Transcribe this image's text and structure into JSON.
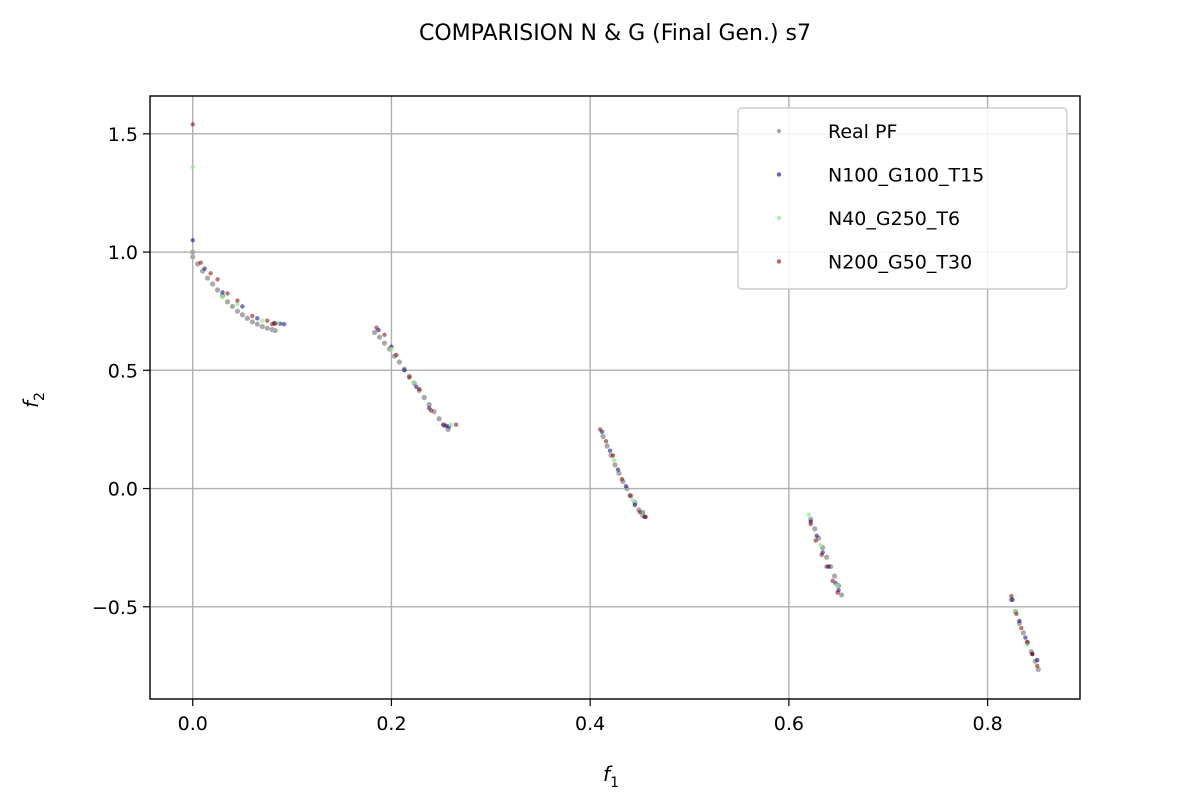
{
  "chart_data": {
    "type": "scatter",
    "title": "COMPARISION N & G (Final Gen.) s7",
    "xlabel": "f",
    "xlabel_sub": "1",
    "ylabel": "f",
    "ylabel_sub": "2",
    "xlim": [
      -0.043,
      0.893
    ],
    "ylim": [
      -0.89,
      1.66
    ],
    "xticks": [
      0.0,
      0.2,
      0.4,
      0.6,
      0.8
    ],
    "xtick_labels": [
      "0.0",
      "0.2",
      "0.4",
      "0.6",
      "0.8"
    ],
    "yticks": [
      -0.5,
      0.0,
      0.5,
      1.0,
      1.5
    ],
    "ytick_labels": [
      "−0.5",
      "0.0",
      "0.5",
      "1.0",
      "1.5"
    ],
    "grid": true,
    "legend_position": "top-right",
    "series": [
      {
        "name": "Real PF",
        "color": "#a9a9a9",
        "opacity": 1.0,
        "radius": 2.6,
        "points": [
          [
            0.0,
            1.0
          ],
          [
            0.0,
            0.98
          ],
          [
            0.005,
            0.95
          ],
          [
            0.01,
            0.92
          ],
          [
            0.015,
            0.89
          ],
          [
            0.02,
            0.865
          ],
          [
            0.025,
            0.84
          ],
          [
            0.03,
            0.815
          ],
          [
            0.035,
            0.79
          ],
          [
            0.04,
            0.77
          ],
          [
            0.045,
            0.75
          ],
          [
            0.05,
            0.735
          ],
          [
            0.055,
            0.72
          ],
          [
            0.06,
            0.705
          ],
          [
            0.065,
            0.695
          ],
          [
            0.07,
            0.685
          ],
          [
            0.075,
            0.678
          ],
          [
            0.08,
            0.672
          ],
          [
            0.083,
            0.668
          ],
          [
            0.183,
            0.66
          ],
          [
            0.188,
            0.64
          ],
          [
            0.193,
            0.615
          ],
          [
            0.198,
            0.59
          ],
          [
            0.203,
            0.56
          ],
          [
            0.208,
            0.535
          ],
          [
            0.213,
            0.505
          ],
          [
            0.218,
            0.475
          ],
          [
            0.223,
            0.445
          ],
          [
            0.228,
            0.415
          ],
          [
            0.233,
            0.385
          ],
          [
            0.238,
            0.355
          ],
          [
            0.243,
            0.325
          ],
          [
            0.248,
            0.295
          ],
          [
            0.253,
            0.268
          ],
          [
            0.257,
            0.25
          ],
          [
            0.413,
            0.22
          ],
          [
            0.417,
            0.18
          ],
          [
            0.421,
            0.14
          ],
          [
            0.425,
            0.1
          ],
          [
            0.429,
            0.065
          ],
          [
            0.433,
            0.03
          ],
          [
            0.437,
            0.0
          ],
          [
            0.441,
            -0.03
          ],
          [
            0.445,
            -0.06
          ],
          [
            0.449,
            -0.09
          ],
          [
            0.453,
            -0.115
          ],
          [
            0.622,
            -0.13
          ],
          [
            0.626,
            -0.17
          ],
          [
            0.63,
            -0.21
          ],
          [
            0.634,
            -0.25
          ],
          [
            0.638,
            -0.29
          ],
          [
            0.642,
            -0.33
          ],
          [
            0.646,
            -0.37
          ],
          [
            0.65,
            -0.41
          ],
          [
            0.653,
            -0.45
          ],
          [
            0.824,
            -0.47
          ],
          [
            0.828,
            -0.52
          ],
          [
            0.832,
            -0.57
          ],
          [
            0.836,
            -0.61
          ],
          [
            0.84,
            -0.65
          ],
          [
            0.844,
            -0.69
          ],
          [
            0.848,
            -0.73
          ],
          [
            0.851,
            -0.765
          ]
        ]
      },
      {
        "name": "N100_G100_T15",
        "color": "#00008b",
        "opacity": 0.55,
        "radius": 2.2,
        "points": [
          [
            0.0,
            1.05
          ],
          [
            0.012,
            0.93
          ],
          [
            0.03,
            0.83
          ],
          [
            0.05,
            0.77
          ],
          [
            0.065,
            0.72
          ],
          [
            0.082,
            0.7
          ],
          [
            0.088,
            0.697
          ],
          [
            0.092,
            0.695
          ],
          [
            0.187,
            0.67
          ],
          [
            0.2,
            0.6
          ],
          [
            0.213,
            0.5
          ],
          [
            0.225,
            0.43
          ],
          [
            0.238,
            0.34
          ],
          [
            0.255,
            0.265
          ],
          [
            0.258,
            0.262
          ],
          [
            0.412,
            0.24
          ],
          [
            0.42,
            0.16
          ],
          [
            0.428,
            0.08
          ],
          [
            0.436,
            0.01
          ],
          [
            0.445,
            -0.07
          ],
          [
            0.453,
            -0.1
          ],
          [
            0.455,
            -0.12
          ],
          [
            0.622,
            -0.14
          ],
          [
            0.628,
            -0.2
          ],
          [
            0.634,
            -0.27
          ],
          [
            0.64,
            -0.33
          ],
          [
            0.647,
            -0.4
          ],
          [
            0.65,
            -0.43
          ],
          [
            0.825,
            -0.47
          ],
          [
            0.832,
            -0.56
          ],
          [
            0.838,
            -0.63
          ],
          [
            0.845,
            -0.7
          ],
          [
            0.85,
            -0.725
          ]
        ]
      },
      {
        "name": "N40_G250_T6",
        "color": "#90ee90",
        "opacity": 0.75,
        "radius": 2.2,
        "points": [
          [
            0.0,
            1.36
          ],
          [
            0.03,
            0.81
          ],
          [
            0.045,
            0.78
          ],
          [
            0.07,
            0.71
          ],
          [
            0.085,
            0.7
          ],
          [
            0.2,
            0.59
          ],
          [
            0.222,
            0.45
          ],
          [
            0.26,
            0.27
          ],
          [
            0.424,
            0.12
          ],
          [
            0.443,
            -0.05
          ],
          [
            0.452,
            -0.1
          ],
          [
            0.62,
            -0.11
          ],
          [
            0.632,
            -0.24
          ],
          [
            0.648,
            -0.41
          ],
          [
            0.828,
            -0.52
          ],
          [
            0.84,
            -0.66
          ]
        ]
      },
      {
        "name": "N200_G50_T30",
        "color": "#8b0000",
        "opacity": 0.55,
        "radius": 2.2,
        "points": [
          [
            0.0,
            1.54
          ],
          [
            0.008,
            0.955
          ],
          [
            0.018,
            0.91
          ],
          [
            0.025,
            0.885
          ],
          [
            0.035,
            0.825
          ],
          [
            0.045,
            0.795
          ],
          [
            0.06,
            0.73
          ],
          [
            0.075,
            0.71
          ],
          [
            0.08,
            0.695
          ],
          [
            0.083,
            0.697
          ],
          [
            0.185,
            0.68
          ],
          [
            0.193,
            0.65
          ],
          [
            0.205,
            0.565
          ],
          [
            0.218,
            0.47
          ],
          [
            0.228,
            0.42
          ],
          [
            0.24,
            0.33
          ],
          [
            0.252,
            0.27
          ],
          [
            0.265,
            0.27
          ],
          [
            0.41,
            0.25
          ],
          [
            0.416,
            0.2
          ],
          [
            0.423,
            0.14
          ],
          [
            0.432,
            0.04
          ],
          [
            0.44,
            -0.03
          ],
          [
            0.45,
            -0.1
          ],
          [
            0.456,
            -0.12
          ],
          [
            0.622,
            -0.15
          ],
          [
            0.627,
            -0.22
          ],
          [
            0.633,
            -0.28
          ],
          [
            0.638,
            -0.33
          ],
          [
            0.644,
            -0.39
          ],
          [
            0.649,
            -0.44
          ],
          [
            0.824,
            -0.455
          ],
          [
            0.829,
            -0.53
          ],
          [
            0.834,
            -0.59
          ],
          [
            0.84,
            -0.65
          ],
          [
            0.845,
            -0.7
          ],
          [
            0.85,
            -0.75
          ]
        ]
      }
    ]
  }
}
